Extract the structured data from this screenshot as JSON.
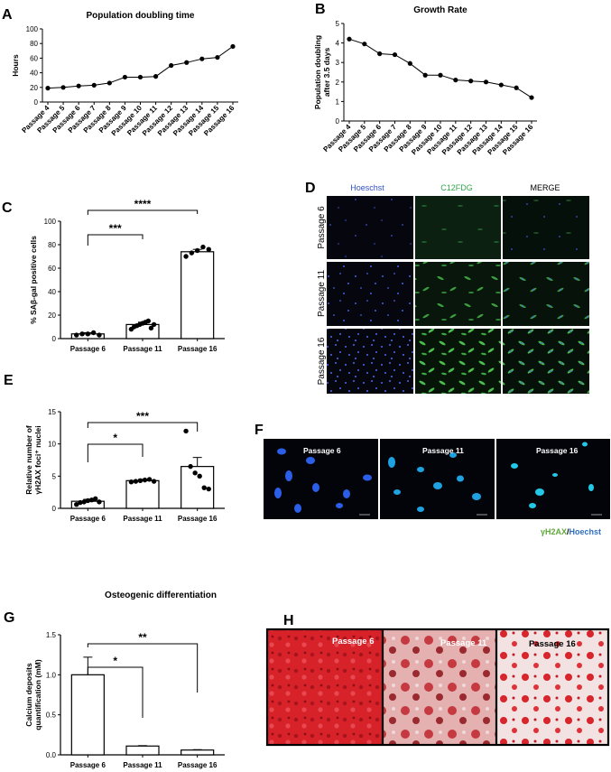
{
  "panels": {
    "A": "A",
    "B": "B",
    "C": "C",
    "D": "D",
    "E": "E",
    "F": "F",
    "G": "G",
    "H": "H"
  },
  "chart_data": [
    {
      "id": "A",
      "type": "line",
      "title": "Population doubling time",
      "ylabel": "Hours",
      "xlabel": "",
      "categories": [
        "Passage 4",
        "Passage 5",
        "Passage 6",
        "Passage 7",
        "Passage 8",
        "Passage 9",
        "Passage 10",
        "Passage 11",
        "Passage 12",
        "Passage 13",
        "Passage 14",
        "Passage 15",
        "Passage 16"
      ],
      "values": [
        19,
        20,
        22,
        23,
        26,
        34,
        34,
        35,
        50,
        54,
        59,
        61,
        76
      ],
      "ylim": [
        0,
        100
      ],
      "yticks": [
        0,
        20,
        40,
        60,
        80,
        100
      ]
    },
    {
      "id": "B",
      "type": "line",
      "title": "Growth Rate",
      "ylabel": "Population doubling after 3.5 days",
      "xlabel": "",
      "categories": [
        "Passage 4",
        "Passage 5",
        "Passage 6",
        "Passage 7",
        "Passage 8",
        "Passage 9",
        "Passage 10",
        "Passage 11",
        "Passage 12",
        "Passage 13",
        "Passage 14",
        "Passage 15",
        "Passage 16"
      ],
      "values": [
        4.2,
        3.95,
        3.45,
        3.4,
        2.95,
        2.35,
        2.35,
        2.1,
        2.05,
        2.0,
        1.85,
        1.7,
        1.2
      ],
      "ylim": [
        0,
        5
      ],
      "yticks": [
        0,
        1,
        2,
        3,
        4,
        5
      ]
    },
    {
      "id": "C",
      "type": "bar",
      "title": "",
      "ylabel": "% SAβ-gal positive cells",
      "xlabel": "",
      "categories": [
        "Passage 6",
        "Passage 11",
        "Passage 16"
      ],
      "values": [
        4,
        12,
        74
      ],
      "errors": [
        1,
        2,
        2
      ],
      "points": [
        [
          3,
          4,
          4,
          5,
          3
        ],
        [
          8,
          10,
          11,
          12,
          13,
          14,
          15,
          9,
          12
        ],
        [
          70,
          73,
          75,
          78,
          76
        ]
      ],
      "ylim": [
        0,
        100
      ],
      "yticks": [
        0,
        20,
        40,
        60,
        80,
        100
      ],
      "significance": [
        {
          "from": 0,
          "to": 1,
          "label": "***"
        },
        {
          "from": 0,
          "to": 2,
          "label": "****"
        }
      ]
    },
    {
      "id": "E",
      "type": "bar",
      "title": "",
      "ylabel": "Relative number of γH2AX foci⁺ nuclei",
      "xlabel": "",
      "categories": [
        "Passage 6",
        "Passage 11",
        "Passage 16"
      ],
      "values": [
        1.1,
        4.3,
        6.5
      ],
      "errors": [
        0.3,
        0.2,
        1.4
      ],
      "points": [
        [
          0.6,
          0.9,
          1.0,
          1.2,
          1.3,
          1.5,
          1.0
        ],
        [
          4.1,
          4.2,
          4.3,
          4.4,
          4.5,
          4.2
        ],
        [
          12,
          6.5,
          5.5,
          5.0,
          3.2,
          3.0
        ]
      ],
      "ylim": [
        0,
        15
      ],
      "yticks": [
        0,
        5,
        10,
        15
      ],
      "significance": [
        {
          "from": 0,
          "to": 1,
          "label": "*"
        },
        {
          "from": 0,
          "to": 2,
          "label": "***"
        }
      ]
    },
    {
      "id": "G",
      "type": "bar",
      "title": "Osteogenic differentiation",
      "ylabel": "Calcium deposits quantification (mM)",
      "xlabel": "",
      "categories": [
        "Passage 6",
        "Passage 11",
        "Passage 16"
      ],
      "values": [
        1.0,
        0.11,
        0.06
      ],
      "errors": [
        0.22,
        0.005,
        0.005
      ],
      "points": [],
      "ylim": [
        0,
        1.5
      ],
      "yticks": [
        "0.0",
        "0.5",
        "1.0",
        "1.5"
      ],
      "significance": [
        {
          "from": 0,
          "to": 1,
          "label": "*"
        },
        {
          "from": 0,
          "to": 2,
          "label": "**"
        }
      ]
    }
  ],
  "panelD": {
    "columns": [
      "Hoeschst",
      "C12FDG",
      "MERGE"
    ],
    "column_colors": [
      "#3050c8",
      "#2ea84a",
      "#000000"
    ],
    "rows": [
      "Passage 6",
      "Passage 11",
      "Passage 16"
    ]
  },
  "panelF": {
    "images": [
      "Passage 6",
      "Passage 11",
      "Passage 16"
    ],
    "legend_green": "γH2AX",
    "legend_sep": "/",
    "legend_blue": "Hoechst",
    "colors": {
      "green": "#5fa83a",
      "blue": "#2f6fc0"
    }
  },
  "panelH": {
    "images": [
      "Passage 6",
      "Passage 11",
      "Passage 16"
    ]
  }
}
